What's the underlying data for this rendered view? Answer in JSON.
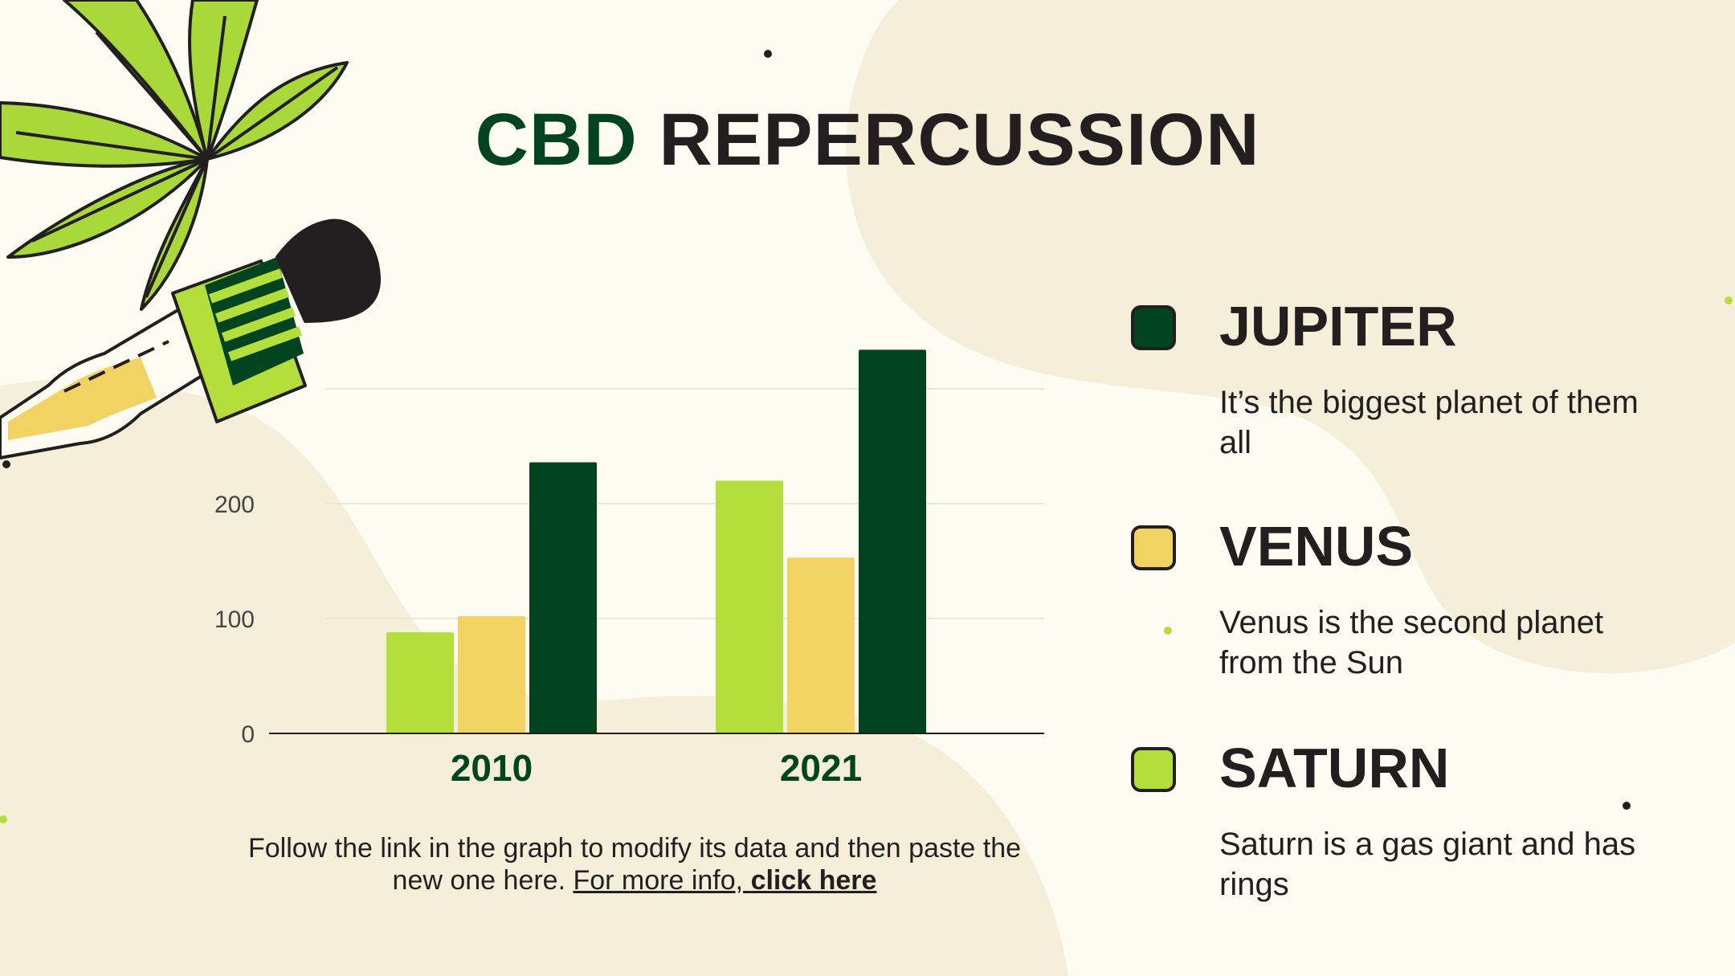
{
  "title": {
    "accent": "CBD",
    "rest": "REPERCUSSION"
  },
  "colors": {
    "background": "#fdfcf3",
    "blob": "#f5efd9",
    "dark_green": "#034420",
    "light_green": "#b3de3c",
    "yellow": "#f3d264",
    "text": "#231f20"
  },
  "chart_data": {
    "type": "bar",
    "categories": [
      "2010",
      "2021"
    ],
    "series": [
      {
        "name": "SATURN",
        "color": "#b3de3c",
        "values": [
          88,
          220
        ]
      },
      {
        "name": "VENUS",
        "color": "#f3d264",
        "values": [
          102,
          153
        ]
      },
      {
        "name": "JUPITER",
        "color": "#034420",
        "values": [
          236,
          334
        ]
      }
    ],
    "ylim": [
      0,
      300
    ],
    "yticks": [
      0,
      100,
      200
    ],
    "grid": true,
    "legend": "right"
  },
  "caption": {
    "text": "Follow the link in the graph to modify its data and then paste the new one here. ",
    "link_prefix": "For more info, ",
    "link_bold": "click here"
  },
  "legend": [
    {
      "name": "JUPITER",
      "color": "#034420",
      "description": "It’s the biggest planet of them all"
    },
    {
      "name": "VENUS",
      "color": "#f3d264",
      "description": "Venus is the second planet from the Sun"
    },
    {
      "name": "SATURN",
      "color": "#b3de3c",
      "description": "Saturn is a gas giant and has rings"
    }
  ]
}
